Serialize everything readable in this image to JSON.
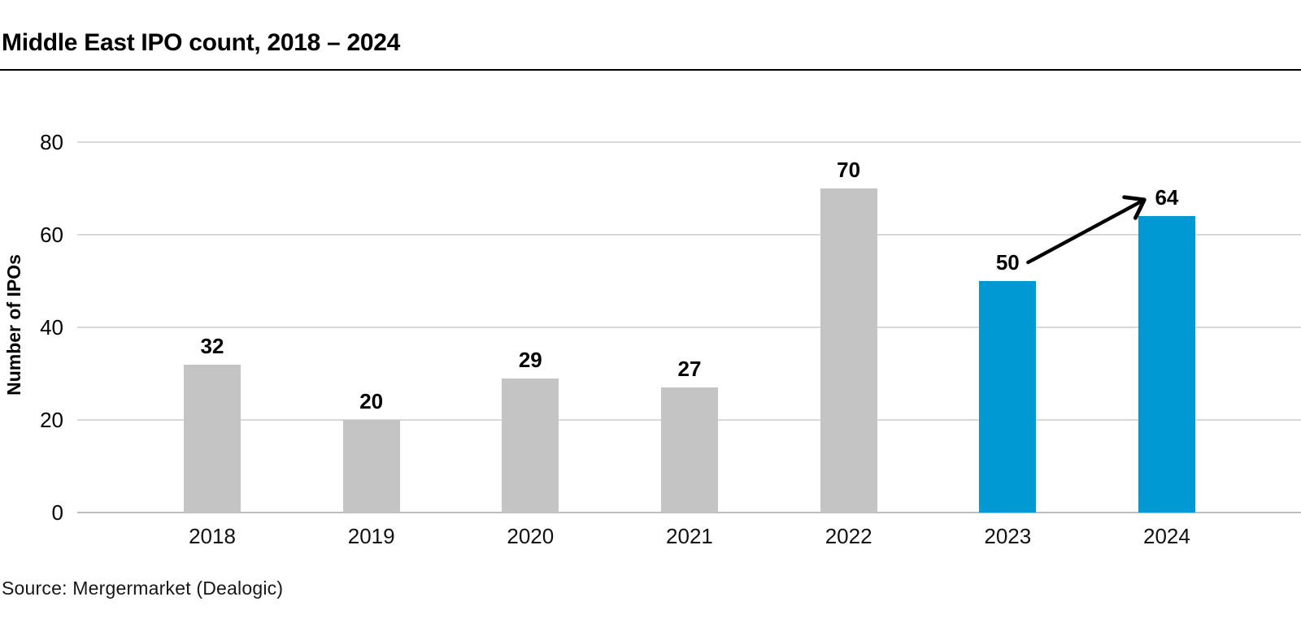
{
  "header": {
    "title": "Middle East IPO count, 2018 – 2024"
  },
  "chart_data": {
    "type": "bar",
    "title": "Middle East IPO count, 2018 – 2024",
    "categories": [
      "2018",
      "2019",
      "2020",
      "2021",
      "2022",
      "2023",
      "2024"
    ],
    "values": [
      32,
      20,
      29,
      27,
      70,
      50,
      64
    ],
    "value_labels": [
      "32",
      "20",
      "29",
      "27",
      "70",
      "50",
      "64"
    ],
    "xlabel": "",
    "ylabel": "Number of IPOs",
    "yticks": [
      0,
      20,
      40,
      60,
      80
    ],
    "ylim": [
      0,
      80
    ],
    "grid": "horizontal",
    "legend": "none",
    "bar_colors": [
      "gray",
      "gray",
      "gray",
      "gray",
      "gray",
      "blue",
      "blue"
    ],
    "colors": {
      "gray": "#c4c4c4",
      "blue": "#0099d3",
      "gridline": "#d9d9d9",
      "axis_line": "#bdbdbd",
      "text": "#000000"
    },
    "annotation_arrow": {
      "from_category": "2023",
      "to_category": "2024",
      "color": "#000000"
    }
  },
  "source": {
    "label": "Source: Mergermarket (Dealogic)"
  }
}
